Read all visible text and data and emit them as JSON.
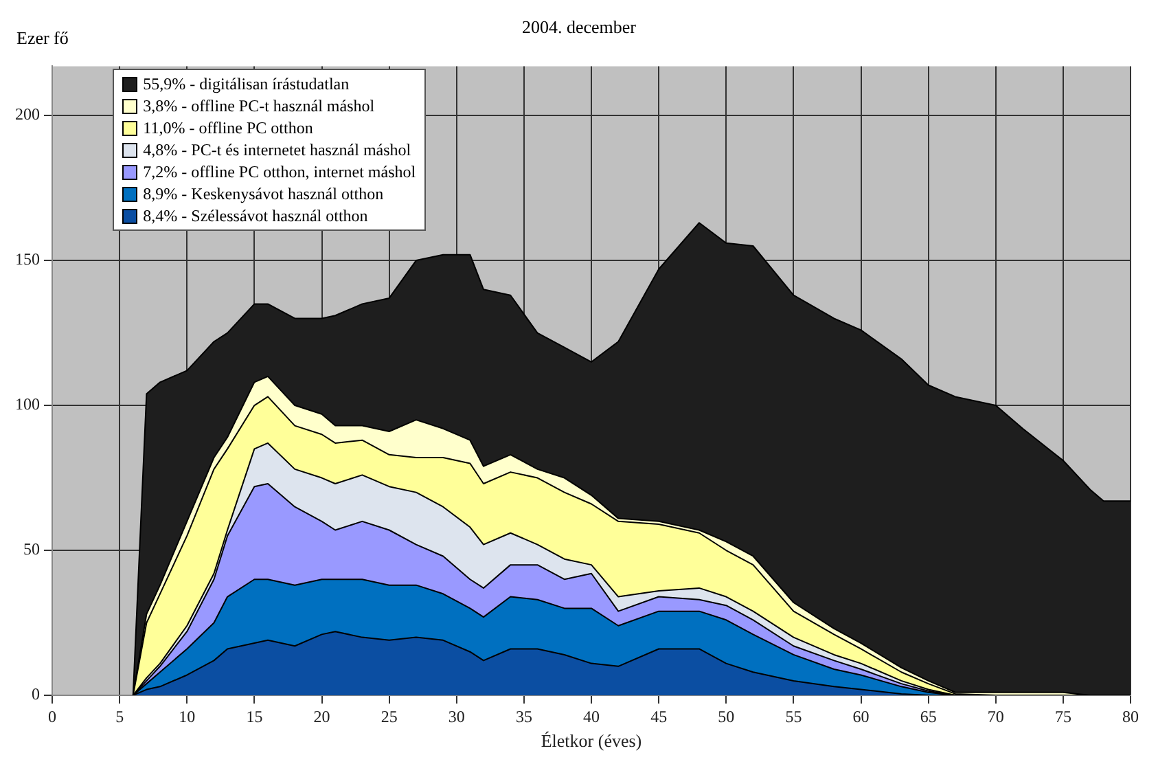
{
  "chart_data": {
    "type": "area",
    "title": "2004. december",
    "xlabel": "Életkor (éves)",
    "ylabel": "Ezer fő",
    "stacked": true,
    "legend": "top left",
    "grid": true,
    "x": [
      6,
      7,
      8,
      10,
      12,
      13,
      15,
      16,
      18,
      20,
      21,
      23,
      25,
      27,
      29,
      31,
      32,
      34,
      36,
      38,
      40,
      42,
      45,
      48,
      50,
      52,
      55,
      58,
      60,
      63,
      65,
      67,
      70,
      72,
      75,
      77,
      78,
      80
    ],
    "xlim": [
      0,
      80
    ],
    "xticks": [
      0,
      5,
      10,
      15,
      20,
      25,
      30,
      35,
      40,
      45,
      50,
      55,
      60,
      65,
      70,
      75,
      80
    ],
    "ylim": [
      0,
      217
    ],
    "yticks": [
      0,
      50,
      100,
      150,
      200
    ],
    "series": [
      {
        "name": "8,4% - Szélessávot használ otthon",
        "color": "#0b4ea2",
        "values": [
          0,
          2,
          3,
          7,
          12,
          16,
          18,
          19,
          17,
          21,
          22,
          20,
          19,
          20,
          19,
          15,
          12,
          16,
          16,
          14,
          11,
          10,
          16,
          16,
          11,
          8,
          5,
          3,
          2,
          0.5,
          0,
          0,
          0,
          0,
          0,
          0,
          0,
          0
        ]
      },
      {
        "name": "8,9% - Keskenysávot használ otthon",
        "color": "#0070c0",
        "values": [
          0,
          2,
          5,
          9,
          13,
          18,
          22,
          21,
          21,
          19,
          18,
          20,
          19,
          18,
          16,
          15,
          15,
          18,
          17,
          16,
          19,
          14,
          13,
          13,
          15,
          13,
          9,
          6,
          5,
          2.5,
          1,
          0,
          0,
          0,
          0,
          0,
          0,
          0
        ]
      },
      {
        "name": "7,2% - offline PC otthon, internet máshol",
        "color": "#9999ff",
        "values": [
          0,
          1,
          2,
          6,
          15,
          21,
          32,
          33,
          27,
          20,
          17,
          20,
          19,
          14,
          13,
          10,
          10,
          11,
          12,
          10,
          12,
          5,
          5,
          4,
          5,
          5,
          3,
          3,
          2,
          1,
          0.5,
          0,
          0,
          0,
          0,
          0,
          0,
          0
        ]
      },
      {
        "name": "4,8% - PC-t és internetet használ máshol",
        "color": "#dde4ee",
        "values": [
          0,
          1,
          1,
          2,
          2,
          2,
          13,
          14,
          13,
          15,
          16,
          16,
          15,
          18,
          17,
          18,
          15,
          11,
          7,
          7,
          3,
          5,
          2,
          4,
          3,
          3,
          3,
          2,
          2,
          1,
          0.5,
          0,
          0,
          0,
          0,
          0,
          0,
          0
        ]
      },
      {
        "name": "11,0% - offline PC otthon",
        "color": "#ffff99",
        "values": [
          0,
          19,
          24,
          31,
          36,
          28,
          15,
          16,
          15,
          15,
          14,
          12,
          11,
          12,
          17,
          22,
          21,
          21,
          23,
          23,
          21,
          26,
          23,
          19,
          16,
          16,
          9,
          7,
          5,
          3,
          2,
          0.5,
          0,
          0,
          0,
          0,
          0,
          0
        ]
      },
      {
        "name": "3,8% - offline PC-t használ máshol",
        "color": "#ffffcc",
        "values": [
          0,
          3,
          3,
          5,
          4,
          4,
          8,
          7,
          7,
          7,
          6,
          5,
          8,
          13,
          10,
          8,
          6,
          6,
          3,
          5,
          3,
          1,
          1,
          1,
          3,
          3,
          3,
          2,
          2,
          1.5,
          1,
          0.5,
          1,
          1,
          1,
          0,
          0,
          0
        ]
      },
      {
        "name": "55,9% - digitálisan írástudatlan",
        "color": "#1e1e1e",
        "values": [
          0,
          76,
          70,
          52,
          40,
          36,
          27,
          25,
          30,
          33,
          38,
          42,
          46,
          55,
          60,
          64,
          61,
          55,
          47,
          45,
          46,
          61,
          87,
          106,
          103,
          107,
          106,
          107,
          108,
          106.5,
          102,
          102,
          99,
          91,
          80,
          71,
          67,
          67
        ]
      }
    ]
  }
}
